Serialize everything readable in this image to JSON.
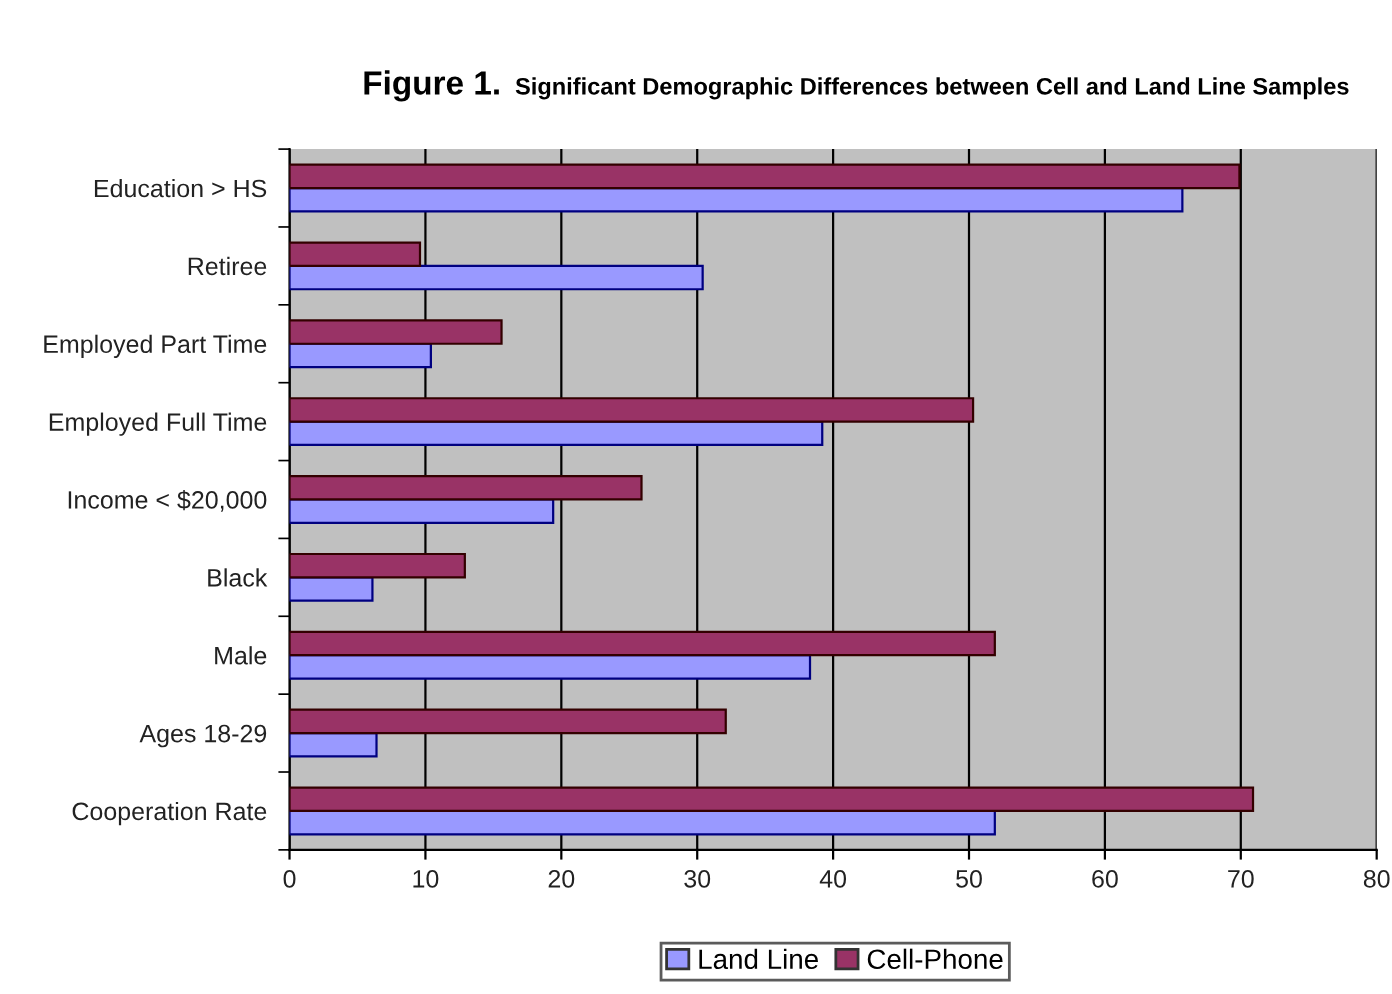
{
  "chart_data": {
    "type": "bar",
    "orientation": "horizontal",
    "title": "Figure 1.",
    "subtitle": "Significant Demographic Differences between Cell and Land Line Samples",
    "categories": [
      "Education > HS",
      "Retiree",
      "Employed Part Time",
      "Employed Full Time",
      "Income < $20,000",
      "Black",
      "Male",
      "Ages 18-29",
      "Cooperation Rate"
    ],
    "series": [
      {
        "name": "Land Line",
        "color": "#9999ff",
        "values": [
          65.7,
          30.4,
          10.4,
          39.2,
          19.4,
          6.1,
          38.3,
          6.4,
          51.9
        ]
      },
      {
        "name": "Cell-Phone",
        "color": "#993366",
        "values": [
          69.9,
          9.6,
          15.6,
          50.3,
          25.9,
          12.9,
          51.9,
          32.1,
          70.9
        ]
      }
    ],
    "xlim": [
      0,
      80
    ],
    "xticks": [
      0,
      10,
      20,
      30,
      40,
      50,
      60,
      70,
      80
    ],
    "grid": "x",
    "legend": "bottom"
  }
}
